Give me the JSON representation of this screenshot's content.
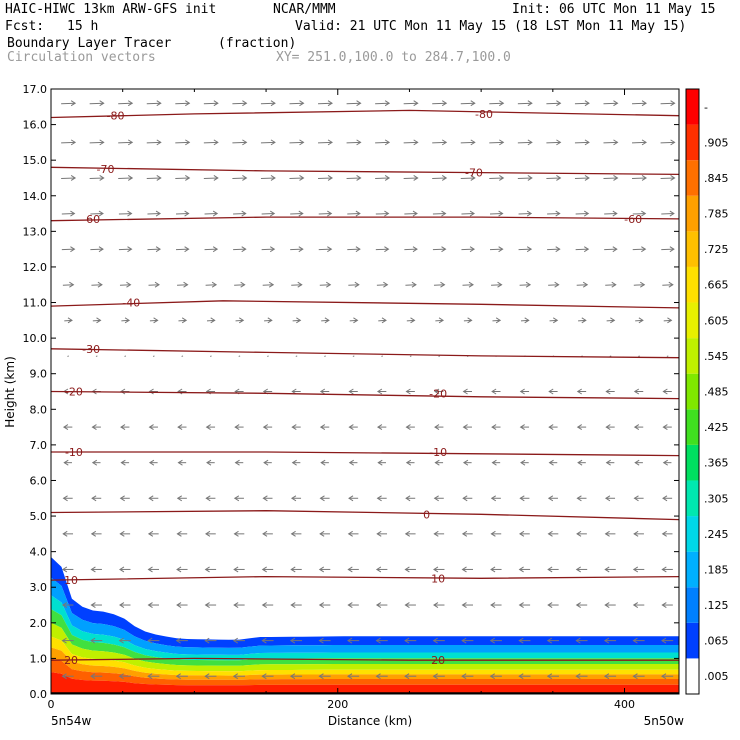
{
  "header": {
    "title_left": "HAIC-HIWC 13km ARW-GFS init",
    "org": "NCAR/MMM",
    "init": "Init: 06 UTC Mon 11 May 15",
    "fcst_label": "Fcst:",
    "fcst_value": "15 h",
    "valid": "Valid: 21 UTC Mon 11 May 15 (18 LST Mon 11 May 15)",
    "field_name": "Boundary Layer Tracer",
    "field_units": "(fraction)",
    "overlay_name": "Circulation vectors",
    "xy_range": "XY= 251.0,100.0 to 284.7,100.0"
  },
  "chart_data": {
    "type": "heatmap",
    "title": "Boundary Layer Tracer",
    "units": "(fraction)",
    "xlabel": "Distance (km)",
    "ylabel": "Height (km)",
    "xlim": [
      0,
      438
    ],
    "ylim": [
      0,
      17
    ],
    "x_ticks": [
      0,
      200,
      400
    ],
    "y_ticks": [
      "0.0",
      "1.0",
      "2.0",
      "3.0",
      "4.0",
      "5.0",
      "6.0",
      "7.0",
      "8.0",
      "9.0",
      "10.0",
      "11.0",
      "12.0",
      "13.0",
      "14.0",
      "15.0",
      "16.0",
      "17.0"
    ],
    "x_endpoint_left": "5n54w",
    "x_endpoint_right": "5n50w",
    "colorbar": {
      "labels": [
        ".005",
        ".065",
        ".125",
        ".185",
        ".245",
        ".305",
        ".365",
        ".425",
        ".485",
        ".545",
        ".605",
        ".665",
        ".725",
        ".785",
        ".845",
        ".905",
        "-"
      ],
      "colors": [
        "#ffffff",
        "#0040ff",
        "#0080ff",
        "#00b0ff",
        "#00d8e8",
        "#00e8b0",
        "#00e060",
        "#40e020",
        "#80e800",
        "#c0f000",
        "#e8f000",
        "#ffe000",
        "#ffc000",
        "#ffa000",
        "#ff7000",
        "#ff3000",
        "#ff0000"
      ]
    },
    "tracer_top": [
      {
        "x": 0,
        "y": 3.85
      },
      {
        "x": 6,
        "y": 3.8
      },
      {
        "x": 10,
        "y": 3.1
      },
      {
        "x": 16,
        "y": 2.55
      },
      {
        "x": 28,
        "y": 2.35
      },
      {
        "x": 40,
        "y": 2.3
      },
      {
        "x": 50,
        "y": 2.15
      },
      {
        "x": 62,
        "y": 1.8
      },
      {
        "x": 75,
        "y": 1.65
      },
      {
        "x": 90,
        "y": 1.55
      },
      {
        "x": 130,
        "y": 1.52
      },
      {
        "x": 145,
        "y": 1.6
      },
      {
        "x": 200,
        "y": 1.62
      },
      {
        "x": 300,
        "y": 1.62
      },
      {
        "x": 438,
        "y": 1.62
      }
    ],
    "temperature_contours": [
      {
        "value": -80,
        "points": [
          {
            "x": 0,
            "y": 16.2
          },
          {
            "x": 100,
            "y": 16.3
          },
          {
            "x": 250,
            "y": 16.4
          },
          {
            "x": 438,
            "y": 16.25
          }
        ],
        "labels": [
          {
            "x": 45,
            "y": 16.25
          },
          {
            "x": 302,
            "y": 16.3
          }
        ]
      },
      {
        "value": -70,
        "points": [
          {
            "x": 0,
            "y": 14.8
          },
          {
            "x": 150,
            "y": 14.7
          },
          {
            "x": 300,
            "y": 14.65
          },
          {
            "x": 438,
            "y": 14.6
          }
        ],
        "labels": [
          {
            "x": 38,
            "y": 14.75
          },
          {
            "x": 295,
            "y": 14.65
          }
        ]
      },
      {
        "value": -60,
        "points": [
          {
            "x": 0,
            "y": 13.3
          },
          {
            "x": 150,
            "y": 13.4
          },
          {
            "x": 300,
            "y": 13.4
          },
          {
            "x": 438,
            "y": 13.35
          }
        ],
        "labels": [
          {
            "x": 28,
            "y": 13.35
          },
          {
            "x": 406,
            "y": 13.35
          }
        ]
      },
      {
        "value": -40,
        "points": [
          {
            "x": 0,
            "y": 10.9
          },
          {
            "x": 120,
            "y": 11.05
          },
          {
            "x": 300,
            "y": 10.95
          },
          {
            "x": 438,
            "y": 10.85
          }
        ],
        "labels": [
          {
            "x": 56,
            "y": 11.0
          }
        ]
      },
      {
        "value": -30,
        "points": [
          {
            "x": 0,
            "y": 9.7
          },
          {
            "x": 150,
            "y": 9.6
          },
          {
            "x": 300,
            "y": 9.5
          },
          {
            "x": 438,
            "y": 9.45
          }
        ],
        "labels": [
          {
            "x": 28,
            "y": 9.7
          }
        ]
      },
      {
        "value": -20,
        "points": [
          {
            "x": 0,
            "y": 8.5
          },
          {
            "x": 150,
            "y": 8.45
          },
          {
            "x": 300,
            "y": 8.35
          },
          {
            "x": 438,
            "y": 8.3
          }
        ],
        "labels": [
          {
            "x": 16,
            "y": 8.5
          },
          {
            "x": 270,
            "y": 8.45
          }
        ]
      },
      {
        "value": -10,
        "points": [
          {
            "x": 0,
            "y": 6.8
          },
          {
            "x": 150,
            "y": 6.8
          },
          {
            "x": 300,
            "y": 6.75
          },
          {
            "x": 438,
            "y": 6.7
          }
        ],
        "labels": [
          {
            "x": 16,
            "y": 6.8
          },
          {
            "x": 270,
            "y": 6.8
          }
        ]
      },
      {
        "value": 0,
        "points": [
          {
            "x": 0,
            "y": 5.1
          },
          {
            "x": 150,
            "y": 5.15
          },
          {
            "x": 300,
            "y": 5.05
          },
          {
            "x": 438,
            "y": 4.9
          }
        ],
        "labels": [
          {
            "x": 262,
            "y": 5.05
          }
        ]
      },
      {
        "value": 10,
        "points": [
          {
            "x": 0,
            "y": 3.2
          },
          {
            "x": 150,
            "y": 3.3
          },
          {
            "x": 300,
            "y": 3.25
          },
          {
            "x": 438,
            "y": 3.3
          }
        ],
        "labels": [
          {
            "x": 14,
            "y": 3.2
          },
          {
            "x": 270,
            "y": 3.25
          }
        ]
      },
      {
        "value": 20,
        "points": [
          {
            "x": 0,
            "y": 0.95
          },
          {
            "x": 100,
            "y": 1.0
          },
          {
            "x": 250,
            "y": 0.95
          },
          {
            "x": 438,
            "y": 0.95
          }
        ],
        "labels": [
          {
            "x": 14,
            "y": 0.95
          },
          {
            "x": 270,
            "y": 0.95
          }
        ]
      }
    ],
    "vector_field": {
      "u_by_level": [
        {
          "height": 16.6,
          "u": 1.0
        },
        {
          "height": 15.5,
          "u": 1.0
        },
        {
          "height": 14.5,
          "u": 1.0
        },
        {
          "height": 13.5,
          "u": 0.9
        },
        {
          "height": 12.5,
          "u": 0.9
        },
        {
          "height": 11.5,
          "u": 0.75
        },
        {
          "height": 10.5,
          "u": 0.55
        },
        {
          "height": 9.5,
          "u": 0.1
        },
        {
          "height": 8.5,
          "u": -0.6
        },
        {
          "height": 7.5,
          "u": -0.6
        },
        {
          "height": 6.5,
          "u": -0.55
        },
        {
          "height": 5.5,
          "u": -0.65
        },
        {
          "height": 4.5,
          "u": -0.7
        },
        {
          "height": 3.5,
          "u": -0.75
        },
        {
          "height": 2.5,
          "u": -0.75
        },
        {
          "height": 1.5,
          "u": -0.8
        },
        {
          "height": 0.5,
          "u": -0.8
        }
      ]
    }
  }
}
